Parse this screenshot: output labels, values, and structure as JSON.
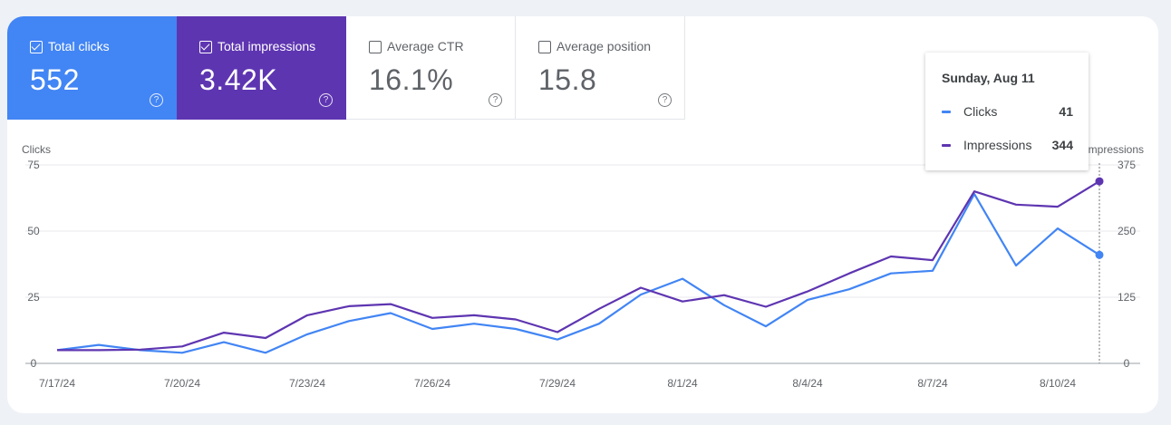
{
  "metrics": [
    {
      "label": "Total clicks",
      "value": "552",
      "checked": true
    },
    {
      "label": "Total impressions",
      "value": "3.42K",
      "checked": true
    },
    {
      "label": "Average CTR",
      "value": "16.1%",
      "checked": false
    },
    {
      "label": "Average position",
      "value": "15.8",
      "checked": false
    }
  ],
  "help_icon": "?",
  "tooltip": {
    "date": "Sunday, Aug 11",
    "rows": [
      {
        "name": "Clicks",
        "value": "41"
      },
      {
        "name": "Impressions",
        "value": "344"
      }
    ]
  },
  "colors": {
    "clicks": "#4285f4",
    "impressions": "#5e35b1",
    "grid": "#e8eaed",
    "axis_text": "#5f6368"
  },
  "chart_data": {
    "type": "line",
    "x": [
      "7/17/24",
      "7/18/24",
      "7/19/24",
      "7/20/24",
      "7/21/24",
      "7/22/24",
      "7/23/24",
      "7/24/24",
      "7/25/24",
      "7/26/24",
      "7/27/24",
      "7/28/24",
      "7/29/24",
      "7/30/24",
      "7/31/24",
      "8/1/24",
      "8/2/24",
      "8/3/24",
      "8/4/24",
      "8/5/24",
      "8/6/24",
      "8/7/24",
      "8/8/24",
      "8/9/24",
      "8/10/24",
      "8/11/24"
    ],
    "x_ticks": [
      "7/17/24",
      "7/20/24",
      "7/23/24",
      "7/26/24",
      "7/29/24",
      "8/1/24",
      "8/4/24",
      "8/7/24",
      "8/10/24"
    ],
    "series": [
      {
        "name": "Clicks",
        "axis": "left",
        "values": [
          5,
          7,
          5,
          4,
          8,
          4,
          11,
          16,
          19,
          13,
          15,
          13,
          9,
          15,
          26,
          32,
          22,
          14,
          24,
          28,
          34,
          35,
          64,
          37,
          51,
          41
        ]
      },
      {
        "name": "Impressions",
        "axis": "right",
        "values": [
          25,
          25,
          26,
          32,
          58,
          48,
          91,
          108,
          112,
          86,
          91,
          83,
          59,
          103,
          143,
          117,
          129,
          107,
          136,
          170,
          202,
          195,
          325,
          300,
          296,
          344
        ]
      }
    ],
    "ylabel_left": "Clicks",
    "ylabel_right": "Impressions",
    "ylim_left": [
      0,
      75
    ],
    "yticks_left": [
      0,
      25,
      50,
      75
    ],
    "ylim_right": [
      0,
      375
    ],
    "yticks_right": [
      0,
      125,
      250,
      375
    ],
    "highlight_x": "8/11/24",
    "grid": true
  }
}
